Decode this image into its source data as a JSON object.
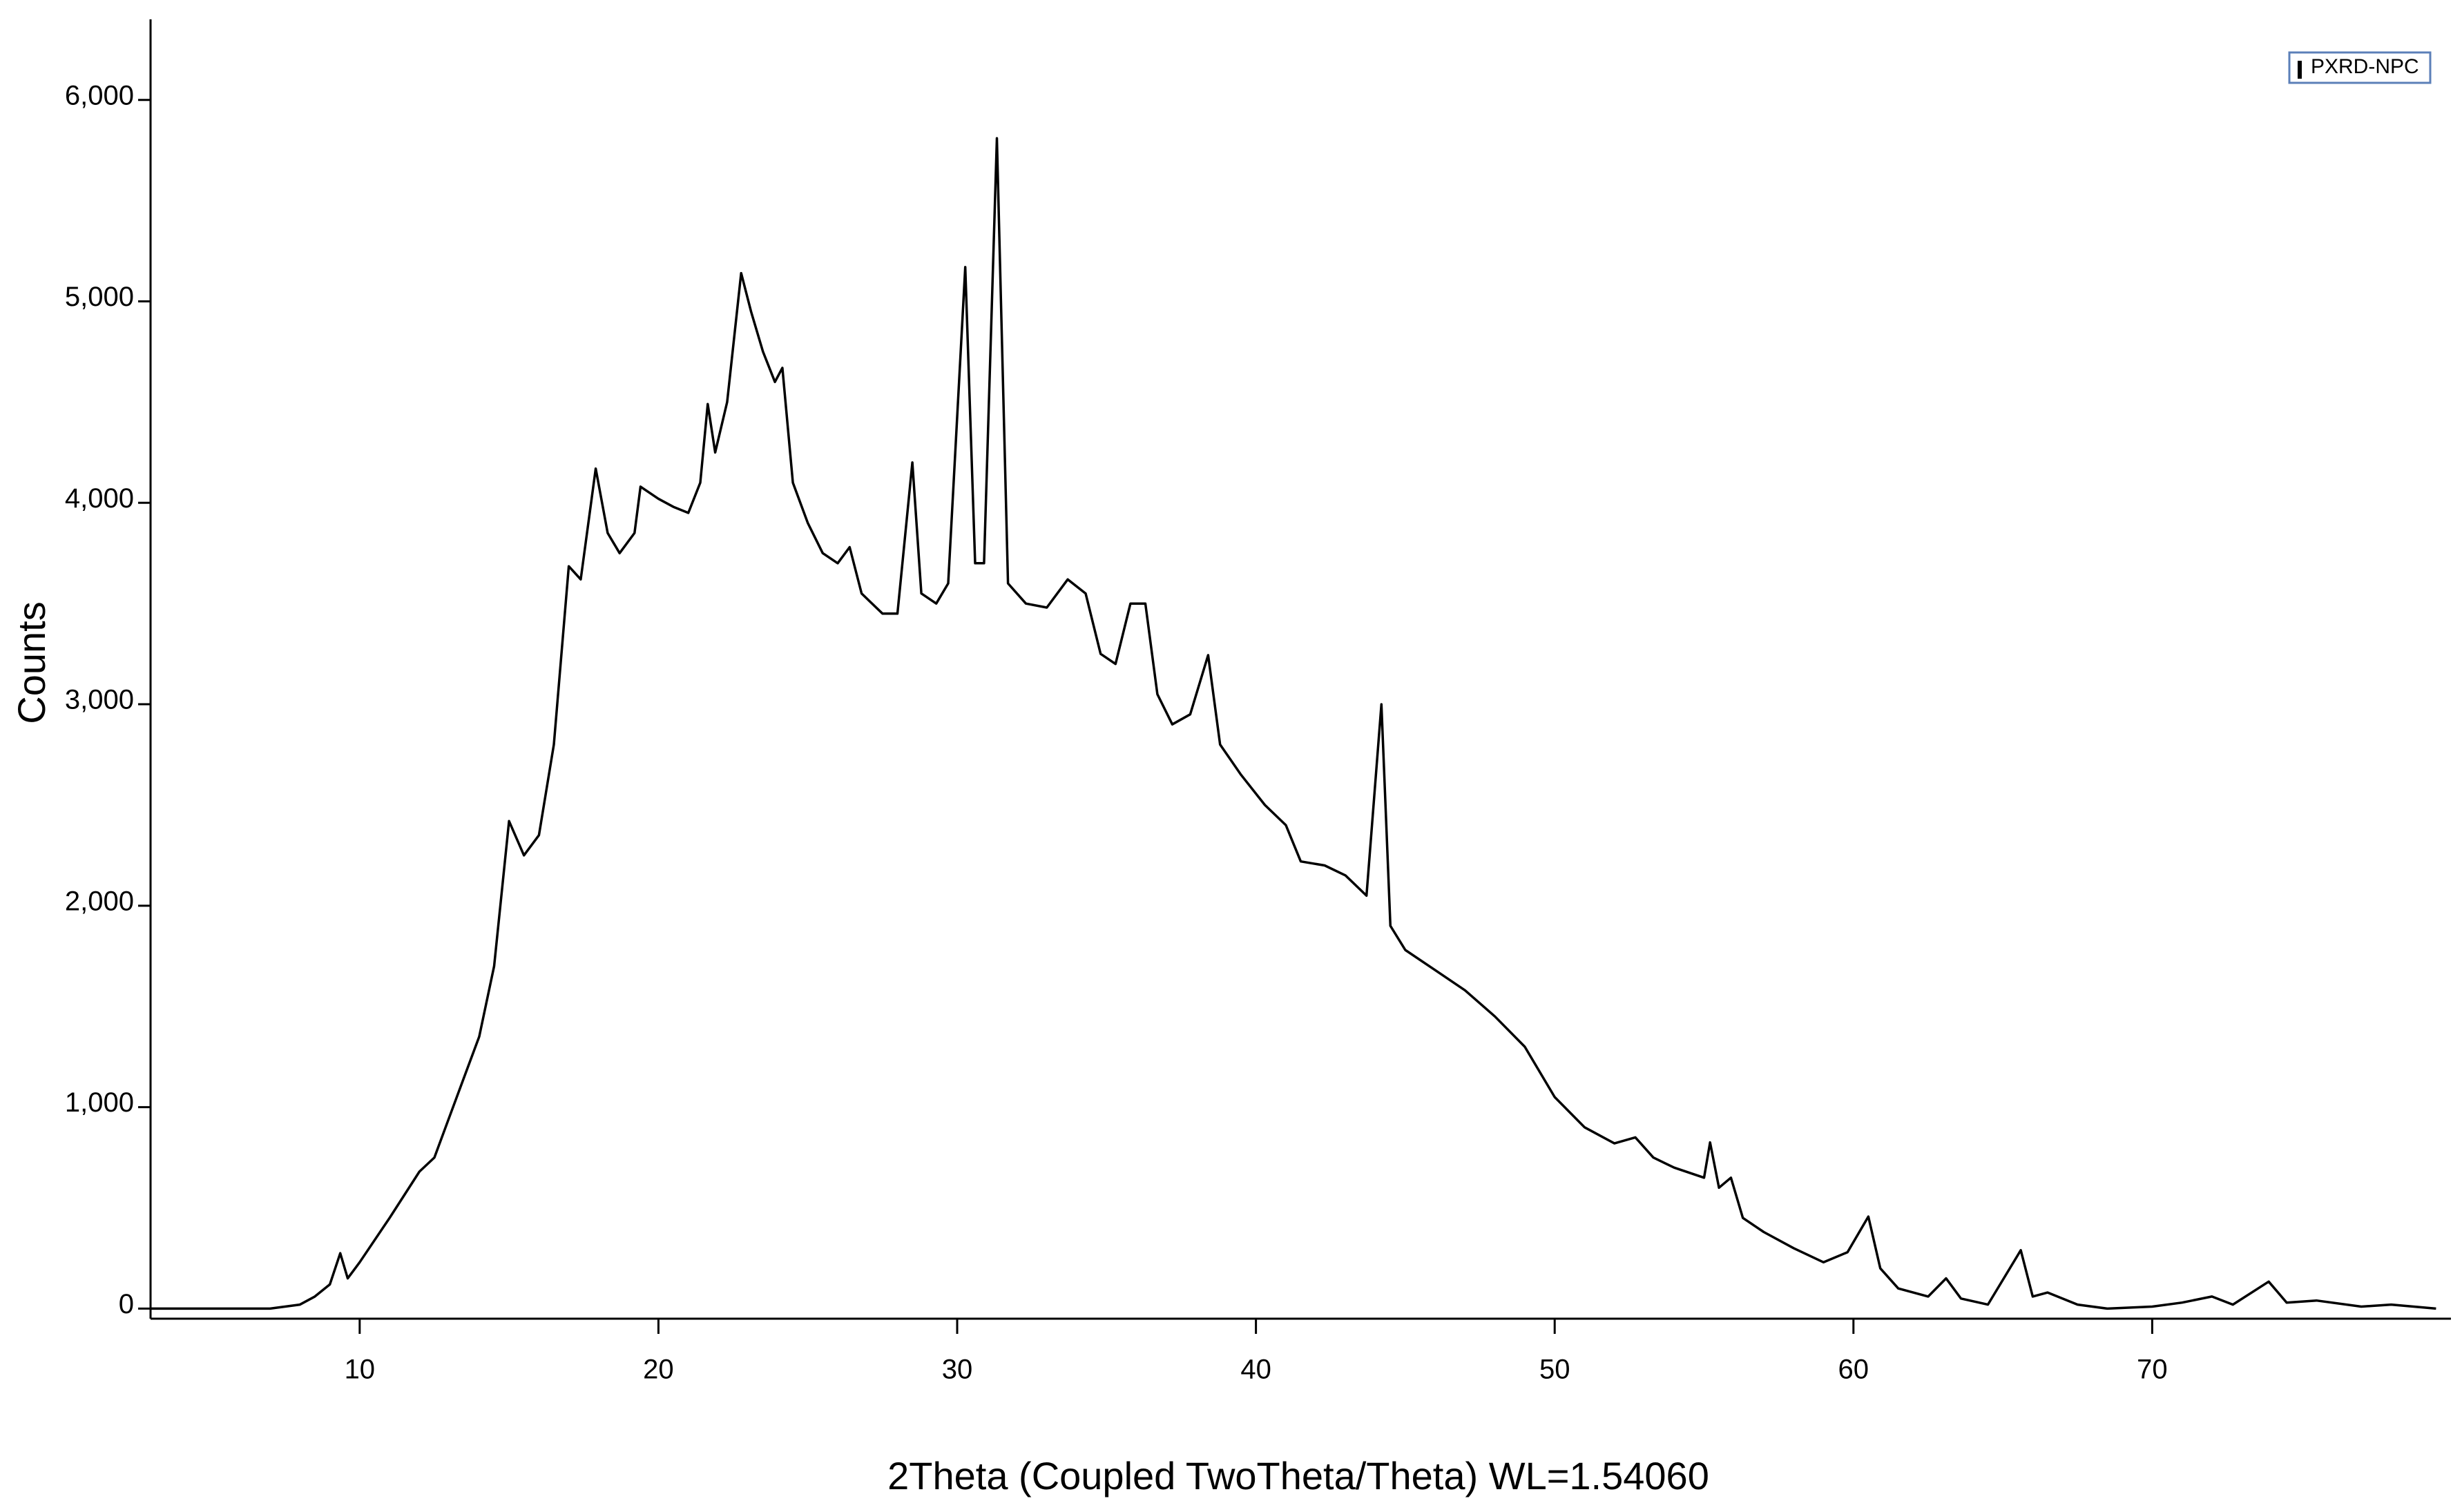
{
  "chart_data": {
    "type": "line",
    "xlabel": "2Theta (Coupled TwoTheta/Theta) WL=1.54060",
    "ylabel": "Counts",
    "x": [
      3,
      5,
      7,
      8,
      8.5,
      9,
      9.35,
      9.6,
      10,
      11,
      12,
      12.5,
      13,
      13.5,
      14,
      14.5,
      15,
      15.5,
      16,
      16.5,
      17,
      17.4,
      17.9,
      18.3,
      18.7,
      19.2,
      19.4,
      20,
      20.5,
      21,
      21.4,
      21.65,
      21.9,
      22.3,
      22.77,
      23.1,
      23.5,
      23.9,
      24.15,
      24.5,
      25,
      25.5,
      26,
      26.4,
      26.8,
      27.5,
      28,
      28.5,
      28.8,
      29.3,
      29.7,
      30.27,
      30.6,
      30.9,
      31.33,
      31.7,
      32.3,
      33,
      33.7,
      34.3,
      34.8,
      35.3,
      35.8,
      36.3,
      36.7,
      37.2,
      37.8,
      38.4,
      38.8,
      39.5,
      40.3,
      41,
      41.5,
      42.3,
      43,
      43.7,
      44.2,
      44.5,
      45,
      46,
      47,
      48,
      49,
      49.6,
      50,
      51,
      52,
      52.7,
      53.3,
      54,
      55,
      55.2,
      55.5,
      55.9,
      56.3,
      57,
      58,
      59,
      59.8,
      60.5,
      60.9,
      61.5,
      62.5,
      63.1,
      63.6,
      64.5,
      65.6,
      66,
      66.5,
      67.5,
      68.5,
      70,
      71,
      72,
      72.7,
      73.9,
      74.5,
      75.5,
      77,
      78,
      79.5
    ],
    "series": [
      {
        "name": "PXRD-NPC",
        "color": "#000000",
        "values": [
          0,
          0,
          0,
          20,
          60,
          120,
          275,
          150,
          230,
          450,
          680,
          750,
          950,
          1150,
          1350,
          1700,
          2420,
          2250,
          2350,
          2800,
          3685,
          3620,
          4170,
          3850,
          3750,
          3850,
          4080,
          4020,
          3980,
          3950,
          4100,
          4490,
          4250,
          4500,
          5140,
          4950,
          4750,
          4600,
          4670,
          4100,
          3900,
          3750,
          3700,
          3780,
          3550,
          3450,
          3450,
          4200,
          3550,
          3500,
          3600,
          5170,
          3700,
          3700,
          5810,
          3600,
          3500,
          3480,
          3620,
          3550,
          3250,
          3200,
          3500,
          3500,
          3050,
          2900,
          2950,
          3244,
          2800,
          2650,
          2500,
          2400,
          2220,
          2200,
          2150,
          2050,
          3000,
          1900,
          1780,
          1680,
          1580,
          1450,
          1300,
          1150,
          1050,
          900,
          820,
          850,
          750,
          700,
          650,
          825,
          600,
          650,
          450,
          380,
          300,
          230,
          280,
          457,
          200,
          100,
          60,
          150,
          50,
          20,
          290,
          60,
          80,
          20,
          0,
          10,
          30,
          60,
          20,
          134,
          30,
          40,
          10,
          20,
          0
        ]
      }
    ],
    "xlim": [
      3,
      80
    ],
    "ylim": [
      -50,
      6400
    ],
    "xticks": [
      10,
      20,
      30,
      40,
      50,
      60,
      70
    ],
    "yticks": [
      0,
      {
        "value": 1000,
        "label": "1,000"
      },
      {
        "value": 2000,
        "label": "2,000"
      },
      {
        "value": 3000,
        "label": "3,000"
      },
      {
        "value": 4000,
        "label": "4,000"
      },
      {
        "value": 5000,
        "label": "5,000"
      },
      {
        "value": 6000,
        "label": "6,000"
      }
    ],
    "legend": "top-right"
  }
}
